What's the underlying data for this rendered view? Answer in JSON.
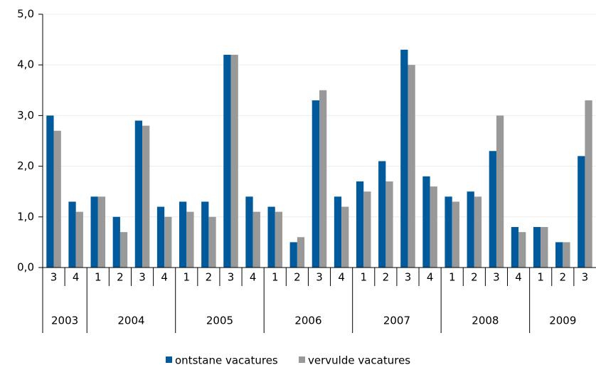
{
  "chart_data": {
    "type": "bar",
    "categories": [
      "3",
      "4",
      "1",
      "2",
      "3",
      "4",
      "1",
      "2",
      "3",
      "4",
      "1",
      "2",
      "3",
      "4",
      "1",
      "2",
      "3",
      "4",
      "1",
      "2",
      "3",
      "4",
      "1",
      "2",
      "3"
    ],
    "category_groups": [
      "2003",
      "2003",
      "2004",
      "2004",
      "2004",
      "2004",
      "2005",
      "2005",
      "2005",
      "2005",
      "2006",
      "2006",
      "2006",
      "2006",
      "2007",
      "2007",
      "2007",
      "2007",
      "2008",
      "2008",
      "2008",
      "2008",
      "2009",
      "2009",
      "2009"
    ],
    "series": [
      {
        "name": "ontstane vacatures",
        "color": "#005a9c",
        "values": [
          3.0,
          1.3,
          1.4,
          1.0,
          2.9,
          1.2,
          1.3,
          1.3,
          4.2,
          1.4,
          1.2,
          0.5,
          3.3,
          1.4,
          1.7,
          2.1,
          4.3,
          1.8,
          1.4,
          1.5,
          2.3,
          0.8,
          0.8,
          0.5,
          2.2
        ]
      },
      {
        "name": "vervulde vacatures",
        "color": "#999999",
        "values": [
          2.7,
          1.1,
          1.4,
          0.7,
          2.8,
          1.0,
          1.1,
          1.0,
          4.2,
          1.1,
          1.1,
          0.6,
          3.5,
          1.2,
          1.5,
          1.7,
          4.0,
          1.6,
          1.3,
          1.4,
          3.0,
          0.7,
          0.8,
          0.5,
          3.3
        ]
      }
    ],
    "ylim": [
      0,
      5
    ],
    "yticks": [
      {
        "value": 0,
        "label": "0,0"
      },
      {
        "value": 1,
        "label": "1,0"
      },
      {
        "value": 2,
        "label": "2,0"
      },
      {
        "value": 3,
        "label": "3,0"
      },
      {
        "value": 4,
        "label": "4,0"
      },
      {
        "value": 5,
        "label": "5,0"
      }
    ],
    "grid": true,
    "legend": "bottom"
  }
}
